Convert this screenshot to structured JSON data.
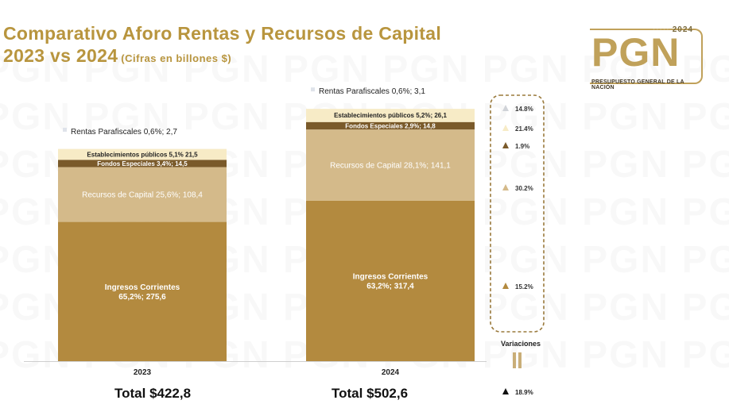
{
  "title": {
    "line1": "Comparativo Aforo Rentas y Recursos de Capital",
    "line2": "2023 vs 2024",
    "subtitle": "(Cifras en billones $)"
  },
  "logo": {
    "year": "2024",
    "letters": "PGN",
    "caption": "PRESUPUESTO GENERAL DE LA NACIÓN"
  },
  "colors": {
    "title": "#b8953e",
    "ingresos_corrientes": "#b38a3f",
    "recursos_capital": "#d4ba8a",
    "fondos_especiales": "#7a5a2a",
    "establecimientos_publicos": "#f7ebc6",
    "rentas_parafiscales": "#dfe3ea"
  },
  "chart_data": {
    "type": "bar",
    "stacked": true,
    "categories": [
      "2023",
      "2024"
    ],
    "series": [
      {
        "name": "Ingresos Corrientes",
        "values": [
          275.6,
          317.4
        ],
        "labels": [
          "Ingresos Corrientes\n65,2%;  275,6",
          "Ingresos Corrientes\n63,2%;  317,4"
        ]
      },
      {
        "name": "Recursos de Capital",
        "values": [
          108.4,
          141.1
        ],
        "labels": [
          "Recursos de Capital 25,6%;  108,4",
          "Recursos de Capital 28,1%;  141,1"
        ]
      },
      {
        "name": "Fondos Especiales",
        "values": [
          14.5,
          14.8
        ],
        "labels": [
          "Fondos Especiales 3,4%;  14,5",
          "Fondos Especiales 2,9%;  14,8"
        ]
      },
      {
        "name": "Establecimientos públicos",
        "values": [
          21.5,
          26.1
        ],
        "labels": [
          "Establecimientos públicos 5,1% 21,5",
          "Establecimientos públicos 5,2%; 26,1"
        ]
      },
      {
        "name": "Rentas Parafiscales",
        "values": [
          2.7,
          3.1
        ],
        "labels": [
          "Rentas Parafiscales 0,6%;  2,7",
          "Rentas Parafiscales  0,6%;  3,1"
        ]
      }
    ],
    "totals": [
      "Total $422,8",
      "Total $502,6"
    ],
    "variations": {
      "title": "Variaciones",
      "items": [
        {
          "series": "Rentas Parafiscales",
          "value": "14.8%"
        },
        {
          "series": "Establecimientos públicos",
          "value": "21.4%"
        },
        {
          "series": "Fondos Especiales",
          "value": "1.9%"
        },
        {
          "series": "Recursos de Capital",
          "value": "30.2%"
        },
        {
          "series": "Ingresos Corrientes",
          "value": "15.2%"
        }
      ],
      "total": "18.9%"
    }
  }
}
